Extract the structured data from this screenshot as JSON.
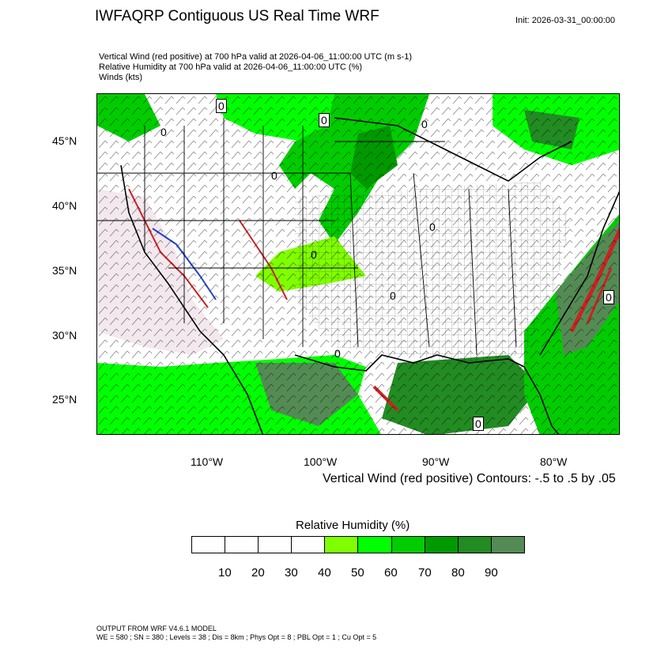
{
  "header": {
    "title": "IWFAQRP Contiguous US Real Time WRF",
    "init": "Init: 2026-03-31_00:00:00",
    "lines": [
      "Vertical Wind (red positive) at 700 hPa valid at 2026-04-06_11:00:00 UTC   (m s-1)",
      "Relative Humidity at 700 hPa valid at 2026-04-06_11:00:00 UTC   (%)",
      "Winds   (kts)"
    ]
  },
  "map": {
    "lat_labels": [
      "45°N",
      "40°N",
      "35°N",
      "30°N",
      "25°N"
    ],
    "lon_labels": [
      "110°W",
      "100°W",
      "90°W",
      "80°W"
    ],
    "contour_zero_label": "0",
    "contour_note": "Vertical Wind (red positive) Contours: -.5 to .5 by .05"
  },
  "colorbar": {
    "title": "Relative Humidity  (%)",
    "colors": [
      "#ffffff",
      "#ffffff",
      "#ffffff",
      "#ffffff",
      "#80ff00",
      "#00ff00",
      "#00cc00",
      "#009900",
      "#228b22",
      "#548b54"
    ],
    "tick_labels": [
      "10",
      "20",
      "30",
      "40",
      "50",
      "60",
      "70",
      "80",
      "90"
    ]
  },
  "footer": {
    "line1": "OUTPUT FROM WRF V4.6.1 MODEL",
    "line2": "WE = 580 ; SN = 380 ; Levels = 38 ; Dis = 8km ; Phys Opt = 8 ; PBL Opt = 1 ; Cu Opt = 5"
  }
}
